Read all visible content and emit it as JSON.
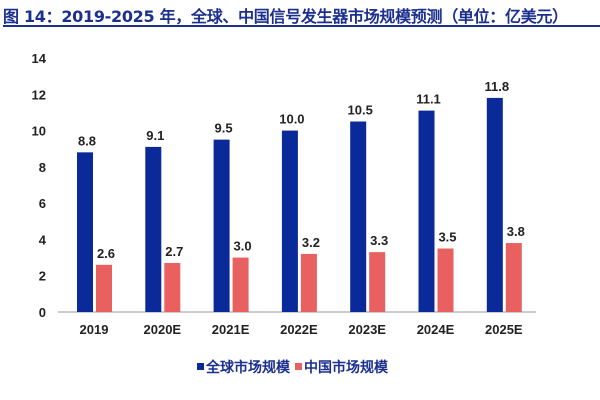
{
  "chart_data": {
    "type": "bar",
    "title": "图 14：2019-2025 年，全球、中国信号发生器市场规模预测（单位：亿美元）",
    "categories": [
      "2019",
      "2020E",
      "2021E",
      "2022E",
      "2023E",
      "2024E",
      "2025E"
    ],
    "series": [
      {
        "name": "全球市场规模",
        "color": "#0a2a9a",
        "values": [
          8.8,
          9.1,
          9.5,
          10.0,
          10.5,
          11.1,
          11.8
        ],
        "labels": [
          "8.8",
          "9.1",
          "9.5",
          "10.0",
          "10.5",
          "11.1",
          "11.8"
        ]
      },
      {
        "name": "中国市场规模",
        "color": "#e8605f",
        "values": [
          2.6,
          2.7,
          3.0,
          3.2,
          3.3,
          3.5,
          3.8
        ],
        "labels": [
          "2.6",
          "2.7",
          "3.0",
          "3.2",
          "3.3",
          "3.5",
          "3.8"
        ]
      }
    ],
    "ylim": [
      0,
      14
    ],
    "yticks": [
      "0",
      "2",
      "4",
      "6",
      "8",
      "10",
      "12",
      "14"
    ],
    "grid": false,
    "legend": "bottom"
  }
}
